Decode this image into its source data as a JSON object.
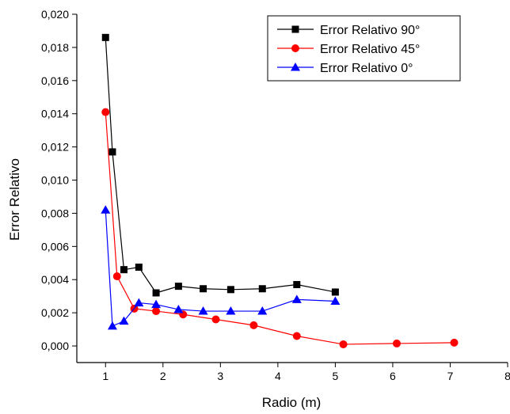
{
  "chart_data": {
    "type": "line",
    "xlabel": "Radio (m)",
    "ylabel": "Error Relativo",
    "xlim": [
      0.5,
      8
    ],
    "ylim": [
      -0.001,
      0.02
    ],
    "x_ticks": [
      1,
      2,
      3,
      4,
      5,
      6,
      7,
      8
    ],
    "x_tick_labels": [
      "1",
      "2",
      "3",
      "4",
      "5",
      "6",
      "7",
      "8"
    ],
    "y_ticks": [
      0,
      0.002,
      0.004,
      0.006,
      0.008,
      0.01,
      0.012,
      0.014,
      0.016,
      0.018,
      0.02
    ],
    "y_tick_labels": [
      "0,000",
      "0,002",
      "0,004",
      "0,006",
      "0,008",
      "0,010",
      "0,012",
      "0,014",
      "0,016",
      "0,018",
      "0,020"
    ],
    "grid": false,
    "legend_position": "top-right",
    "series": [
      {
        "name": "Error Relativo 90°",
        "color": "#000000",
        "marker": "square",
        "x": [
          1.0,
          1.12,
          1.32,
          1.58,
          1.88,
          2.27,
          2.7,
          3.18,
          3.73,
          4.33,
          5.0
        ],
        "y": [
          0.0186,
          0.0117,
          0.0046,
          0.00475,
          0.0032,
          0.0036,
          0.00345,
          0.0034,
          0.00345,
          0.0037,
          0.00325
        ]
      },
      {
        "name": "Error Relativo 45°",
        "color": "#ff0000",
        "marker": "circle",
        "x": [
          1.0,
          1.2,
          1.5,
          1.88,
          2.35,
          2.92,
          3.58,
          4.33,
          5.14,
          6.07,
          7.07
        ],
        "y": [
          0.0141,
          0.0042,
          0.00225,
          0.0021,
          0.0019,
          0.0016,
          0.00125,
          0.0006,
          0.0001,
          0.00015,
          0.0002
        ]
      },
      {
        "name": "Error Relativo 0°",
        "color": "#0000ff",
        "marker": "triangle",
        "x": [
          1.0,
          1.12,
          1.32,
          1.58,
          1.88,
          2.27,
          2.7,
          3.18,
          3.73,
          4.33,
          5.0
        ],
        "y": [
          0.0082,
          0.0012,
          0.0015,
          0.0026,
          0.0025,
          0.0022,
          0.0021,
          0.0021,
          0.0021,
          0.0028,
          0.0027
        ]
      }
    ]
  }
}
